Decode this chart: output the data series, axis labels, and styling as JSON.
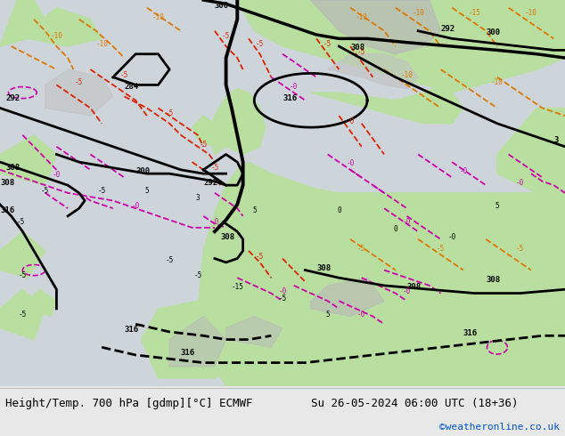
{
  "title_left": "Height/Temp. 700 hPa [gdmp][°C] ECMWF",
  "title_right": "Su 26-05-2024 06:00 UTC (18+36)",
  "credit": "©weatheronline.co.uk",
  "credit_color": "#0055cc",
  "bg_map_land_green": "#b8e0a0",
  "bg_map_land_gray": "#c8c8c8",
  "bg_map_sea": "#d0d8e0",
  "bg_bottom": "#e8e8e8",
  "text_color": "#000000",
  "font_size_title": 9,
  "font_size_credit": 8,
  "col_black": "#000000",
  "col_red": "#dd2200",
  "col_magenta": "#cc00aa",
  "col_orange": "#dd7700",
  "fig_width": 6.34,
  "fig_height": 4.9,
  "dpi": 100
}
